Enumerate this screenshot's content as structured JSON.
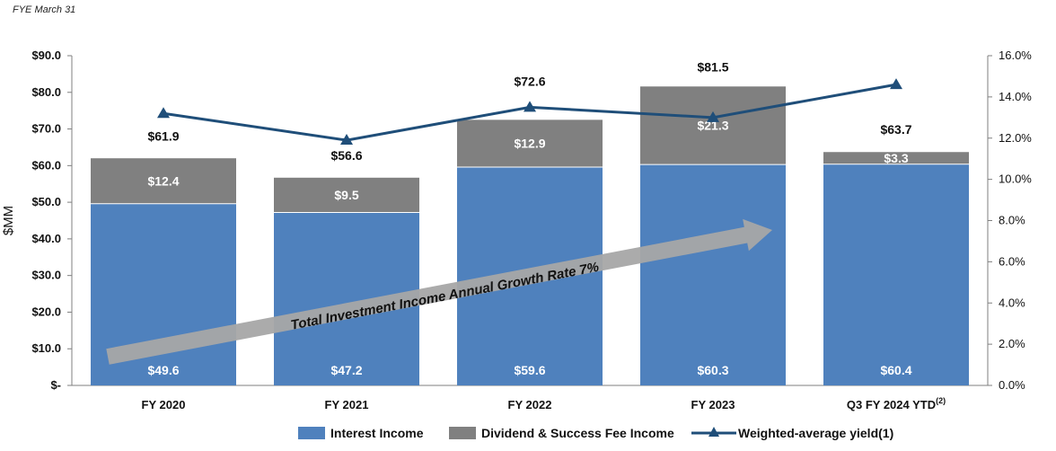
{
  "note": "FYE March 31",
  "chart_data": {
    "type": "bar",
    "stacked": true,
    "categories": [
      "FY 2020",
      "FY 2021",
      "FY 2022",
      "FY 2023",
      "Q3 FY 2024 YTD"
    ],
    "last_category_superscript": "(2)",
    "series": [
      {
        "name": "Interest Income",
        "values": [
          49.6,
          47.2,
          59.6,
          60.3,
          60.4
        ],
        "color": "#4f81bd",
        "labels": [
          "$49.6",
          "$47.2",
          "$59.6",
          "$60.3",
          "$60.4"
        ]
      },
      {
        "name": "Dividend & Success Fee Income",
        "values": [
          12.4,
          9.5,
          12.9,
          21.3,
          3.3
        ],
        "color": "#808080",
        "labels": [
          "$12.4",
          "$9.5",
          "$12.9",
          "$21.3",
          "$3.3"
        ]
      }
    ],
    "totals": {
      "values": [
        61.9,
        56.6,
        72.6,
        81.5,
        63.7
      ],
      "labels": [
        "$61.9",
        "$56.6",
        "$72.6",
        "$81.5",
        "$63.7"
      ]
    },
    "line_series": {
      "name": "Weighted-average yield(1)",
      "values": [
        13.2,
        11.9,
        13.5,
        13.0,
        14.6
      ],
      "color": "#1f4e79",
      "axis": "right"
    },
    "ylabel": "$MM",
    "ylim": [
      0,
      90
    ],
    "yticks": [
      0,
      10,
      20,
      30,
      40,
      50,
      60,
      70,
      80,
      90
    ],
    "ytick_labels": [
      "$-",
      "$10.0",
      "$20.0",
      "$30.0",
      "$40.0",
      "$50.0",
      "$60.0",
      "$70.0",
      "$80.0",
      "$90.0"
    ],
    "y2lim": [
      0,
      16
    ],
    "y2ticks": [
      0,
      2,
      4,
      6,
      8,
      10,
      12,
      14,
      16
    ],
    "y2tick_labels": [
      "0.0%",
      "2.0%",
      "4.0%",
      "6.0%",
      "8.0%",
      "10.0%",
      "12.0%",
      "14.0%",
      "16.0%"
    ],
    "annotation": "Total Investment Income Annual Growth Rate 7%",
    "legend": [
      "Interest Income",
      "Dividend & Success Fee Income",
      "Weighted-average yield(1)"
    ],
    "legend_position": "bottom"
  }
}
